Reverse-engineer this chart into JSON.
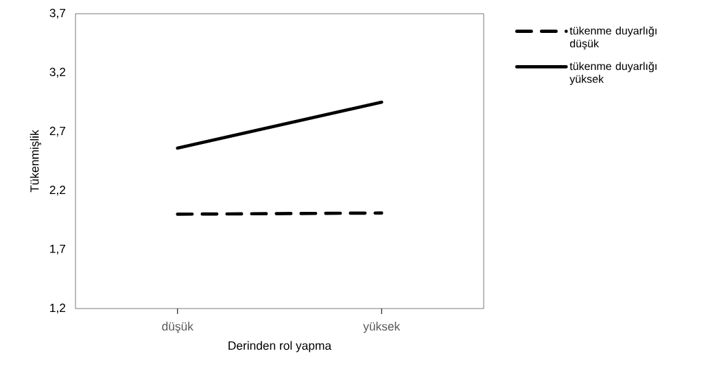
{
  "chart_data": {
    "type": "line",
    "xlabel": "Derinden rol yapma",
    "ylabel": "Tükenmişlik",
    "categories": [
      "düşük",
      "yüksek"
    ],
    "series": [
      {
        "name": "tükenme duyarlığı düşük",
        "color": "#000000",
        "line_style": "dashed",
        "values": [
          2.0,
          2.01
        ]
      },
      {
        "name": "tükenme duyarlığı yüksek",
        "color": "#000000",
        "line_style": "solid",
        "values": [
          2.56,
          2.95
        ]
      }
    ],
    "ylim": [
      1.2,
      3.7
    ],
    "yticks": [
      {
        "value": 1.2,
        "label": "1,2"
      },
      {
        "value": 1.7,
        "label": "1,7"
      },
      {
        "value": 2.2,
        "label": "2,2"
      },
      {
        "value": 2.7,
        "label": "2,7"
      },
      {
        "value": 3.2,
        "label": "3,2"
      },
      {
        "value": 3.7,
        "label": "3,7"
      }
    ],
    "grid": false,
    "legend": "right",
    "marker": "none"
  }
}
